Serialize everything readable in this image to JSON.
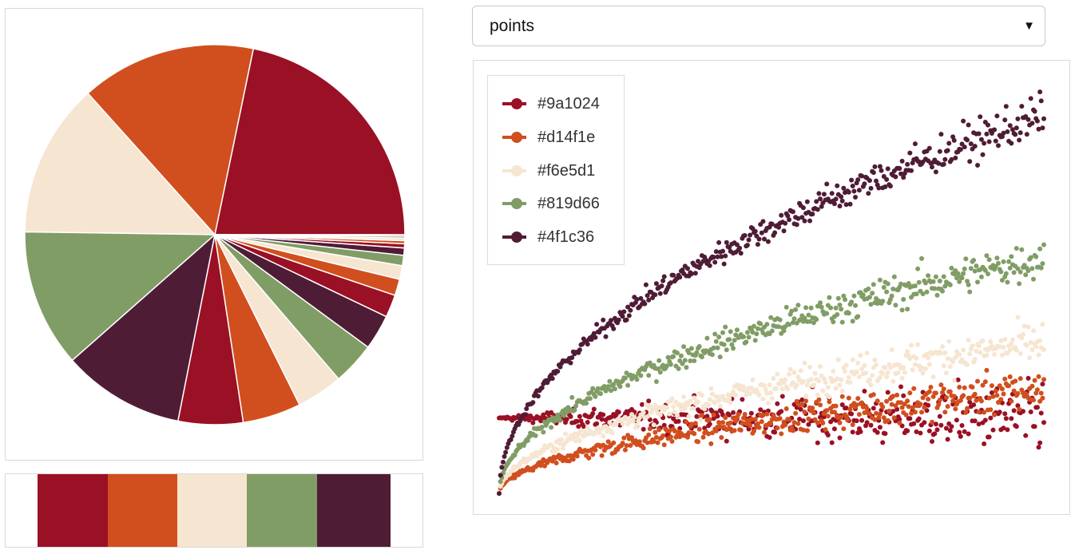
{
  "palette": [
    "#9a1024",
    "#d14f1e",
    "#f6e5d1",
    "#819d66",
    "#4f1c36"
  ],
  "select": {
    "value": "points"
  },
  "legend": {
    "items": [
      {
        "label": "#9a1024",
        "color": "#9a1024"
      },
      {
        "label": "#d14f1e",
        "color": "#d14f1e"
      },
      {
        "label": "#f6e5d1",
        "color": "#f6e5d1"
      },
      {
        "label": "#819d66",
        "color": "#819d66"
      },
      {
        "label": "#4f1c36",
        "color": "#4f1c36"
      }
    ]
  },
  "chart_data": [
    {
      "type": "pie",
      "title": "",
      "slice_colors": [
        "#9a1024",
        "#d14f1e",
        "#f6e5d1",
        "#819d66",
        "#4f1c36",
        "#9a1024",
        "#d14f1e",
        "#f6e5d1",
        "#819d66",
        "#4f1c36",
        "#9a1024",
        "#d14f1e",
        "#f6e5d1",
        "#819d66",
        "#4f1c36",
        "#9a1024",
        "#d14f1e",
        "#f6e5d1",
        "#819d66",
        "#4f1c36"
      ],
      "values": [
        91.7,
        62.8,
        55.3,
        49.5,
        43.8,
        23.2,
        20.9,
        16.6,
        15.3,
        12.6,
        8.1,
        5.9,
        4.9,
        3.7,
        2.6,
        1.5,
        1.1,
        0.9,
        0.7,
        0.5
      ],
      "start": "3 o'clock",
      "direction": "counter-clockwise"
    },
    {
      "type": "scatter",
      "title": "",
      "xlabel": "",
      "ylabel": "",
      "xlim": [
        0,
        1
      ],
      "ylim": [
        -1.3,
        5.3
      ],
      "legend_position": "top-left",
      "series": [
        {
          "name": "#9a1024",
          "color": "#9a1024",
          "trend": "flat",
          "center_end": 0.0,
          "spread_end": 0.45
        },
        {
          "name": "#d14f1e",
          "color": "#d14f1e",
          "trend": "sqrt",
          "center_end": 0.45,
          "spread_end": 0.35
        },
        {
          "name": "#f6e5d1",
          "color": "#f6e5d1",
          "trend": "sqrt",
          "center_end": 1.2,
          "spread_end": 0.35
        },
        {
          "name": "#819d66",
          "color": "#819d66",
          "trend": "sqrt",
          "center_end": 2.55,
          "spread_end": 0.35
        },
        {
          "name": "#4f1c36",
          "color": "#4f1c36",
          "trend": "sqrt",
          "center_end": 4.8,
          "spread_end": 0.35
        }
      ]
    }
  ]
}
